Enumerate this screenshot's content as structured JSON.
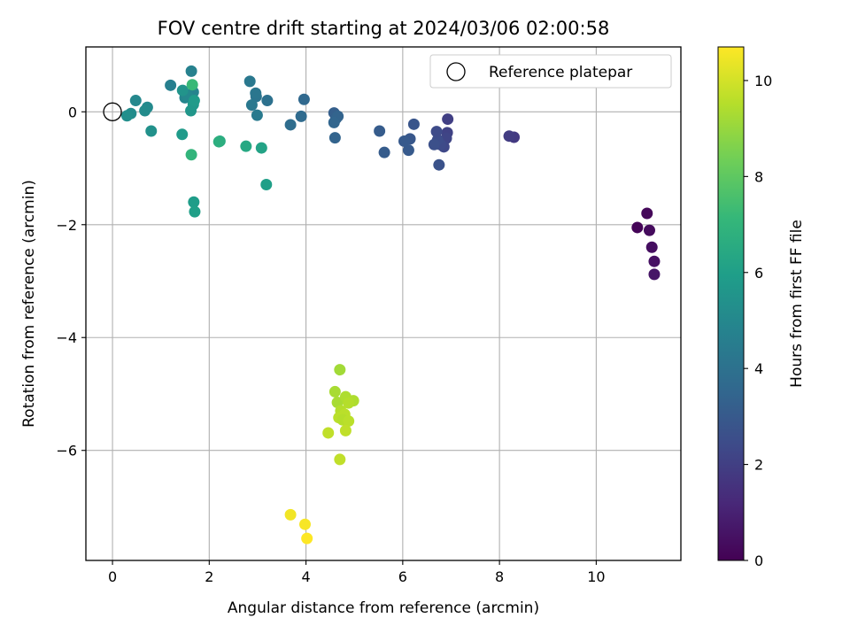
{
  "chart_data": {
    "type": "scatter",
    "title": "FOV centre drift starting at 2024/03/06 02:00:58",
    "xlabel": "Angular distance from reference (arcmin)",
    "ylabel": "Rotation from reference (arcmin)",
    "xlim": [
      -0.55,
      11.75
    ],
    "ylim": [
      -7.95,
      1.15
    ],
    "xticks": [
      0,
      2,
      4,
      6,
      8,
      10
    ],
    "yticks": [
      0,
      -2,
      -4,
      -6
    ],
    "grid": true,
    "legend": {
      "position": "top-right",
      "entries": [
        "Reference platepar"
      ]
    },
    "reference_point": {
      "x": 0,
      "y": 0,
      "label": "Reference platepar"
    },
    "colorbar": {
      "label": "Hours from first FF file",
      "range": [
        0,
        10.7
      ],
      "ticks": [
        0,
        2,
        4,
        6,
        8,
        10
      ],
      "colormap": "viridis"
    },
    "points": [
      {
        "x": 10.85,
        "y": -2.05,
        "c": 0.1
      },
      {
        "x": 11.05,
        "y": -1.8,
        "c": 0.2
      },
      {
        "x": 11.1,
        "y": -2.1,
        "c": 0.3
      },
      {
        "x": 11.15,
        "y": -2.4,
        "c": 0.4
      },
      {
        "x": 11.2,
        "y": -2.65,
        "c": 0.5
      },
      {
        "x": 11.2,
        "y": -2.88,
        "c": 0.6
      },
      {
        "x": 8.3,
        "y": -0.45,
        "c": 1.8
      },
      {
        "x": 8.2,
        "y": -0.43,
        "c": 1.9
      },
      {
        "x": 6.93,
        "y": -0.13,
        "c": 2.0
      },
      {
        "x": 6.92,
        "y": -0.37,
        "c": 2.1
      },
      {
        "x": 6.9,
        "y": -0.47,
        "c": 2.2
      },
      {
        "x": 6.85,
        "y": -0.62,
        "c": 2.3
      },
      {
        "x": 6.78,
        "y": -0.58,
        "c": 2.4
      },
      {
        "x": 6.72,
        "y": -0.5,
        "c": 2.5
      },
      {
        "x": 6.7,
        "y": -0.35,
        "c": 2.4
      },
      {
        "x": 6.65,
        "y": -0.58,
        "c": 2.6
      },
      {
        "x": 6.75,
        "y": -0.94,
        "c": 2.7
      },
      {
        "x": 6.23,
        "y": -0.22,
        "c": 2.8
      },
      {
        "x": 6.15,
        "y": -0.48,
        "c": 2.9
      },
      {
        "x": 6.12,
        "y": -0.68,
        "c": 3.0
      },
      {
        "x": 6.03,
        "y": -0.52,
        "c": 3.0
      },
      {
        "x": 5.62,
        "y": -0.72,
        "c": 3.1
      },
      {
        "x": 5.52,
        "y": -0.34,
        "c": 3.1
      },
      {
        "x": 4.58,
        "y": -0.02,
        "c": 3.2
      },
      {
        "x": 4.62,
        "y": -0.12,
        "c": 3.3
      },
      {
        "x": 4.66,
        "y": -0.08,
        "c": 3.4
      },
      {
        "x": 4.6,
        "y": -0.46,
        "c": 3.4
      },
      {
        "x": 4.58,
        "y": -0.19,
        "c": 3.5
      },
      {
        "x": 3.96,
        "y": 0.22,
        "c": 3.6
      },
      {
        "x": 3.9,
        "y": -0.08,
        "c": 3.7
      },
      {
        "x": 3.68,
        "y": -0.23,
        "c": 3.8
      },
      {
        "x": 3.2,
        "y": 0.2,
        "c": 4.0
      },
      {
        "x": 2.97,
        "y": 0.27,
        "c": 4.1
      },
      {
        "x": 2.96,
        "y": 0.33,
        "c": 4.2
      },
      {
        "x": 2.88,
        "y": 0.12,
        "c": 4.3
      },
      {
        "x": 2.84,
        "y": 0.54,
        "c": 4.3
      },
      {
        "x": 2.99,
        "y": -0.06,
        "c": 4.4
      },
      {
        "x": 1.2,
        "y": 0.47,
        "c": 4.6
      },
      {
        "x": 1.63,
        "y": 0.72,
        "c": 4.7
      },
      {
        "x": 1.67,
        "y": 0.35,
        "c": 4.8
      },
      {
        "x": 1.5,
        "y": 0.25,
        "c": 4.9
      },
      {
        "x": 1.55,
        "y": 0.28,
        "c": 5.0
      },
      {
        "x": 0.48,
        "y": 0.2,
        "c": 5.0
      },
      {
        "x": 0.72,
        "y": 0.08,
        "c": 5.1
      },
      {
        "x": 0.67,
        "y": 0.02,
        "c": 5.2
      },
      {
        "x": 0.38,
        "y": -0.03,
        "c": 5.2
      },
      {
        "x": 0.3,
        "y": -0.07,
        "c": 5.3
      },
      {
        "x": 0.8,
        "y": -0.34,
        "c": 5.4
      },
      {
        "x": 1.45,
        "y": 0.38,
        "c": 5.5
      },
      {
        "x": 1.62,
        "y": 0.02,
        "c": 5.6
      },
      {
        "x": 1.67,
        "y": 0.13,
        "c": 5.7
      },
      {
        "x": 1.69,
        "y": 0.2,
        "c": 5.8
      },
      {
        "x": 1.44,
        "y": -0.4,
        "c": 5.8
      },
      {
        "x": 1.68,
        "y": -1.6,
        "c": 5.9
      },
      {
        "x": 1.7,
        "y": -1.77,
        "c": 6.0
      },
      {
        "x": 3.18,
        "y": -1.29,
        "c": 6.0
      },
      {
        "x": 3.08,
        "y": -0.64,
        "c": 6.2
      },
      {
        "x": 2.76,
        "y": -0.61,
        "c": 6.4
      },
      {
        "x": 2.22,
        "y": -0.52,
        "c": 6.5
      },
      {
        "x": 2.2,
        "y": -0.53,
        "c": 6.7
      },
      {
        "x": 1.63,
        "y": -0.76,
        "c": 7.0
      },
      {
        "x": 1.65,
        "y": 0.48,
        "c": 7.2
      },
      {
        "x": 4.7,
        "y": -4.57,
        "c": 9.2
      },
      {
        "x": 4.6,
        "y": -4.96,
        "c": 9.3
      },
      {
        "x": 4.65,
        "y": -5.15,
        "c": 9.3
      },
      {
        "x": 4.82,
        "y": -5.05,
        "c": 9.4
      },
      {
        "x": 4.98,
        "y": -5.12,
        "c": 9.4
      },
      {
        "x": 4.88,
        "y": -5.16,
        "c": 9.5
      },
      {
        "x": 4.72,
        "y": -5.3,
        "c": 9.5
      },
      {
        "x": 4.8,
        "y": -5.36,
        "c": 9.6
      },
      {
        "x": 4.68,
        "y": -5.42,
        "c": 9.6
      },
      {
        "x": 4.76,
        "y": -5.46,
        "c": 9.5
      },
      {
        "x": 4.88,
        "y": -5.48,
        "c": 9.6
      },
      {
        "x": 4.46,
        "y": -5.69,
        "c": 9.7
      },
      {
        "x": 4.82,
        "y": -5.65,
        "c": 9.7
      },
      {
        "x": 4.7,
        "y": -6.16,
        "c": 9.7
      },
      {
        "x": 3.68,
        "y": -7.14,
        "c": 10.5
      },
      {
        "x": 3.98,
        "y": -7.31,
        "c": 10.6
      },
      {
        "x": 4.02,
        "y": -7.56,
        "c": 10.7
      }
    ]
  }
}
